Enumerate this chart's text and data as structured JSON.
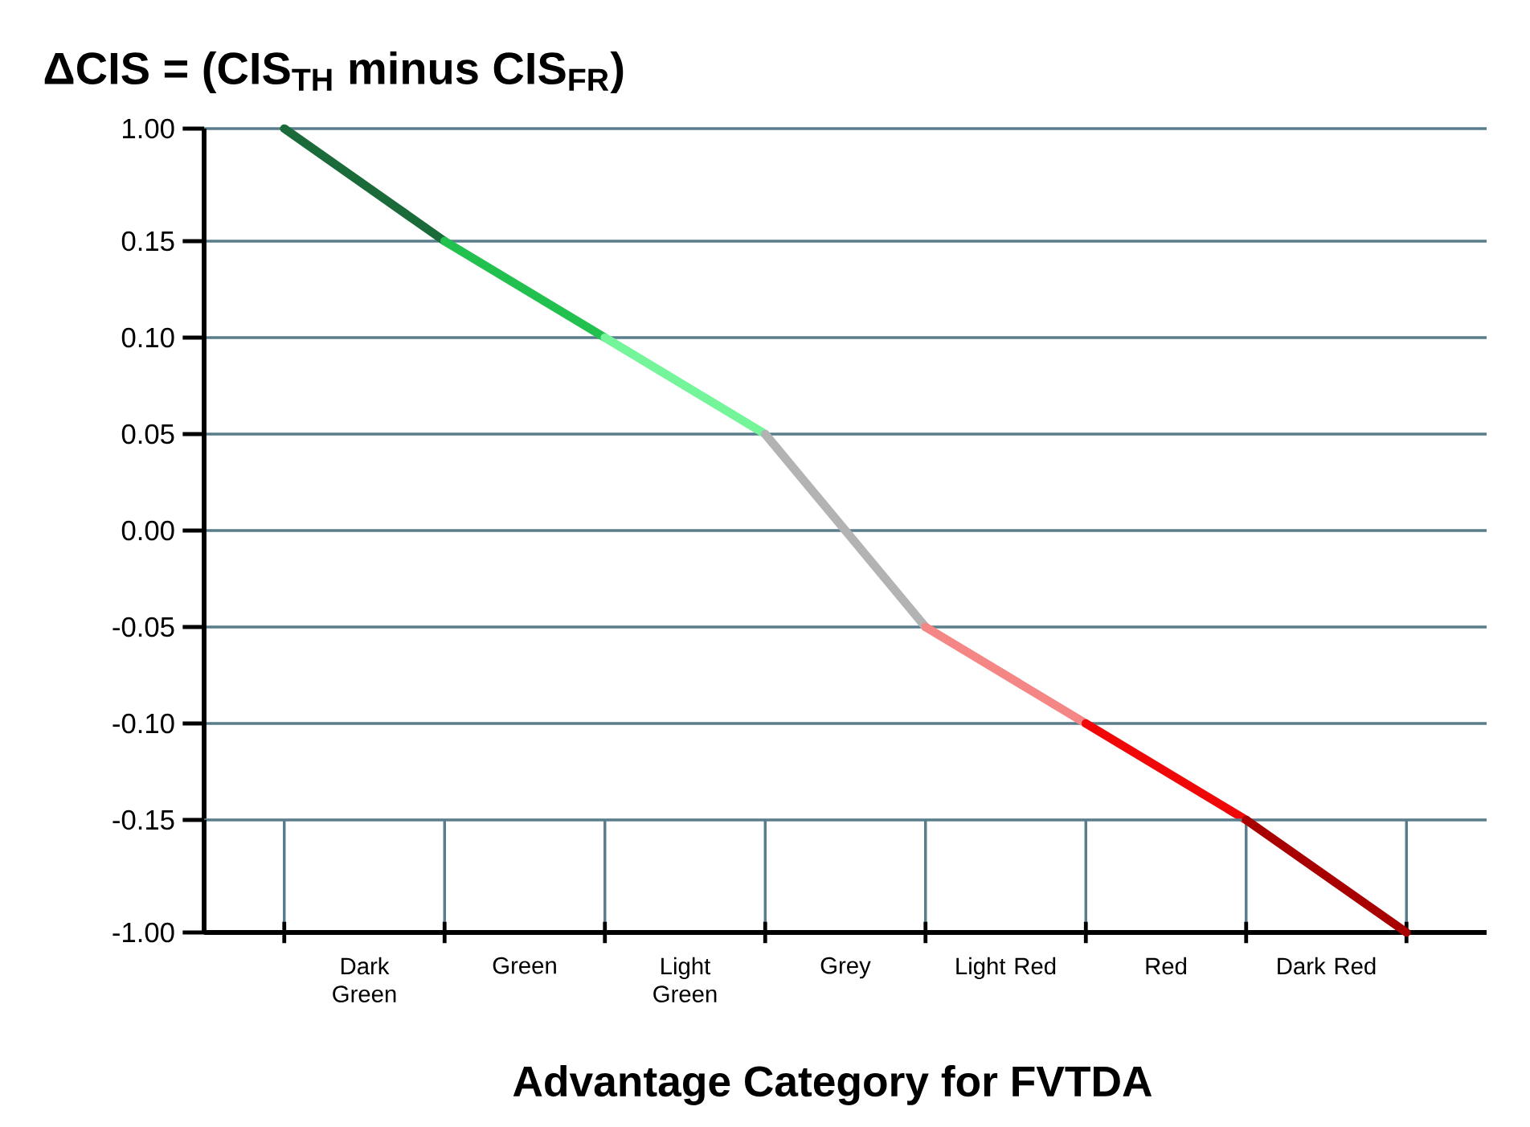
{
  "chart_data": [
    {
      "type": "line",
      "title": "ΔCIS = (CIS$_{TH}$ minus CIS$_{FR}$)",
      "categories": [
        null,
        null,
        null,
        null,
        null,
        null,
        null,
        null
      ],
      "ylim": [
        0.15,
        1
      ],
      "yticks": [
        {
          "value": 1,
          "label": "1.00"
        },
        {
          "value": 0.15,
          "label": "0.15"
        }
      ],
      "grid": true,
      "series": [
        {
          "color": "#1b6b3a",
          "values": [
            1,
            0.15,
            null,
            null,
            null,
            null,
            null,
            null
          ]
        }
      ]
    },
    {
      "type": "line",
      "categories": [
        null,
        null,
        null,
        null,
        null,
        null,
        null,
        null
      ],
      "ylim": [
        -0.15,
        0.15
      ],
      "yticks": [
        {
          "value": 0.1,
          "label": "0.10"
        },
        {
          "value": 0.05,
          "label": "0.05"
        },
        {
          "value": 0,
          "label": "0.00"
        },
        {
          "value": -0.05,
          "label": "-0.05"
        },
        {
          "value": -0.1,
          "label": "-0.10"
        }
      ],
      "grid": true,
      "series": [
        {
          "color": "#22c04e",
          "values": [
            null,
            0.15,
            0.1,
            null,
            null,
            null,
            null,
            null
          ]
        },
        {
          "color": "#74f59a",
          "values": [
            null,
            null,
            0.1,
            0.05,
            null,
            null,
            null,
            null
          ]
        },
        {
          "color": "#b3b3b3",
          "values": [
            null,
            null,
            null,
            0.05,
            -0.05,
            null,
            null,
            null
          ]
        },
        {
          "color": "#f58686",
          "values": [
            null,
            null,
            null,
            null,
            -0.05,
            -0.1,
            null,
            null
          ]
        },
        {
          "color": "#f00808",
          "values": [
            null,
            null,
            null,
            null,
            null,
            -0.1,
            -0.15,
            null
          ]
        }
      ]
    },
    {
      "type": "line",
      "xlabel": "Advantage Category for FVTDA",
      "categories": [
        null,
        null,
        null,
        null,
        null,
        null,
        null,
        null
      ],
      "annotations": [
        "Dark Green",
        "Green",
        "Light Green",
        "Grey",
        "Light Red",
        "Red",
        "Dark Red"
      ],
      "ylim": [
        -1,
        -0.15
      ],
      "yticks": [
        {
          "value": -0.15,
          "label": "-0.15"
        },
        {
          "value": -1,
          "label": "-1.00"
        }
      ],
      "grid": true,
      "series": [
        {
          "color": "#a80000",
          "values": [
            null,
            null,
            null,
            null,
            null,
            null,
            -0.15,
            -1
          ]
        }
      ]
    }
  ]
}
